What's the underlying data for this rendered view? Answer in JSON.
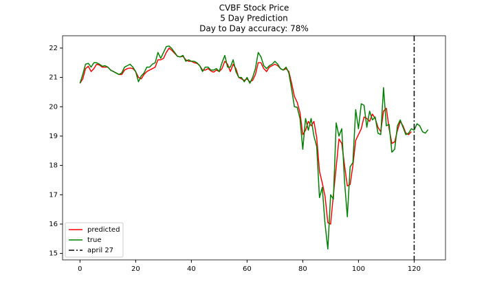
{
  "chart_data": {
    "type": "line",
    "title": "CVBF Stock Price",
    "subtitle": [
      "5 Day Prediction",
      "Day to Day accuracy: 78%"
    ],
    "x": [
      0,
      1,
      2,
      3,
      4,
      5,
      6,
      7,
      8,
      9,
      10,
      11,
      12,
      13,
      14,
      15,
      16,
      17,
      18,
      19,
      20,
      21,
      22,
      23,
      24,
      25,
      26,
      27,
      28,
      29,
      30,
      31,
      32,
      33,
      34,
      35,
      36,
      37,
      38,
      39,
      40,
      41,
      42,
      43,
      44,
      45,
      46,
      47,
      48,
      49,
      50,
      51,
      52,
      53,
      54,
      55,
      56,
      57,
      58,
      59,
      60,
      61,
      62,
      63,
      64,
      65,
      66,
      67,
      68,
      69,
      70,
      71,
      72,
      73,
      74,
      75,
      76,
      77,
      78,
      79,
      80,
      81,
      82,
      83,
      84,
      85,
      86,
      87,
      88,
      89,
      90,
      91,
      92,
      93,
      94,
      95,
      96,
      97,
      98,
      99,
      100,
      101,
      102,
      103,
      104,
      105,
      106,
      107,
      108,
      109,
      110,
      111,
      112,
      113,
      114,
      115,
      116,
      117,
      118,
      119,
      120,
      121,
      122,
      123,
      124,
      125
    ],
    "series": [
      {
        "name": "predicted",
        "color": "#ff0000",
        "values": [
          20.8,
          20.95,
          21.3,
          21.38,
          21.2,
          21.3,
          21.45,
          21.42,
          21.35,
          21.35,
          21.35,
          21.25,
          21.2,
          21.15,
          21.1,
          21.1,
          21.25,
          21.3,
          21.32,
          21.3,
          21.2,
          21.0,
          20.95,
          21.1,
          21.2,
          21.25,
          21.3,
          21.35,
          21.6,
          21.6,
          21.65,
          21.85,
          22.0,
          21.92,
          21.82,
          21.72,
          21.7,
          21.72,
          21.6,
          21.55,
          21.55,
          21.5,
          21.48,
          21.4,
          21.25,
          21.25,
          21.3,
          21.22,
          21.18,
          21.25,
          21.2,
          21.3,
          21.55,
          21.45,
          21.2,
          21.45,
          21.3,
          21.0,
          20.95,
          20.9,
          20.95,
          20.85,
          20.9,
          21.1,
          21.5,
          21.5,
          21.3,
          21.2,
          21.35,
          21.4,
          21.45,
          21.4,
          21.3,
          21.25,
          21.3,
          21.2,
          20.8,
          20.35,
          20.15,
          19.8,
          19.05,
          19.2,
          19.5,
          19.35,
          19.5,
          18.95,
          17.8,
          17.4,
          16.95,
          16.05,
          16.0,
          17.0,
          17.95,
          18.9,
          18.75,
          18.0,
          17.3,
          17.35,
          18.0,
          18.85,
          19.05,
          19.25,
          19.65,
          19.6,
          19.5,
          19.75,
          19.6,
          19.3,
          19.15,
          19.85,
          19.95,
          19.25,
          18.75,
          18.8,
          19.2,
          19.5,
          19.35,
          19.1,
          19.05,
          19.15,
          null,
          null,
          null,
          null,
          null,
          null
        ]
      },
      {
        "name": "true",
        "color": "#008000",
        "values": [
          20.8,
          21.1,
          21.45,
          21.48,
          21.35,
          21.5,
          21.5,
          21.45,
          21.38,
          21.4,
          21.35,
          21.25,
          21.2,
          21.15,
          21.1,
          21.15,
          21.35,
          21.4,
          21.45,
          21.35,
          21.2,
          20.85,
          21.05,
          21.15,
          21.35,
          21.35,
          21.45,
          21.5,
          21.85,
          21.65,
          21.85,
          22.05,
          22.07,
          21.98,
          21.85,
          21.72,
          21.7,
          21.75,
          21.55,
          21.6,
          21.55,
          21.55,
          21.5,
          21.4,
          21.2,
          21.35,
          21.35,
          21.25,
          21.25,
          21.3,
          21.2,
          21.5,
          21.75,
          21.35,
          21.35,
          21.6,
          21.2,
          21.0,
          21.0,
          20.85,
          21.0,
          20.8,
          21.0,
          21.3,
          21.85,
          21.7,
          21.4,
          21.3,
          21.4,
          21.45,
          21.55,
          21.45,
          21.3,
          21.25,
          21.35,
          21.15,
          20.6,
          20.0,
          19.98,
          19.6,
          18.55,
          19.6,
          19.2,
          19.6,
          19.0,
          18.65,
          16.9,
          17.25,
          16.0,
          15.15,
          17.0,
          16.85,
          19.45,
          19.0,
          19.25,
          17.45,
          16.25,
          17.95,
          18.1,
          19.9,
          19.25,
          20.1,
          20.05,
          19.3,
          19.85,
          19.55,
          19.65,
          19.1,
          19.05,
          20.65,
          19.35,
          19.4,
          18.45,
          18.55,
          19.35,
          19.55,
          19.3,
          19.05,
          19.1,
          19.25,
          19.2,
          19.42,
          19.35,
          19.15,
          19.1,
          19.22
        ]
      }
    ],
    "vline": {
      "x": 120,
      "label": "april 27",
      "color": "#000000",
      "style": "dashdot"
    },
    "xlim": [
      -6.25,
      131.25
    ],
    "xticks": [
      0,
      20,
      40,
      60,
      80,
      100,
      120
    ],
    "ylim": [
      14.78,
      22.42
    ],
    "yticks": [
      15,
      16,
      17,
      18,
      19,
      20,
      21,
      22
    ],
    "grid": false,
    "legend": "lower left"
  }
}
